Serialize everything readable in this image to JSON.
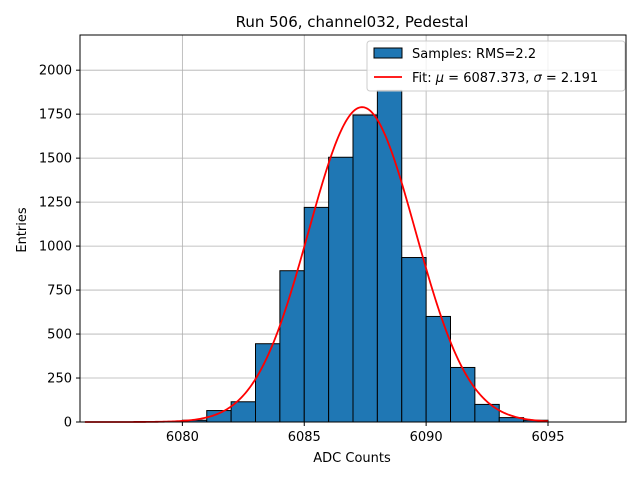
{
  "chart_data": {
    "type": "bar",
    "title": "Run 506, channel032, Pedestal",
    "xlabel": "ADC Counts",
    "ylabel": "Entries",
    "xlim": [
      6075.8,
      6098.2
    ],
    "ylim": [
      0,
      2200
    ],
    "x_ticks": [
      6080,
      6085,
      6090,
      6095
    ],
    "y_ticks": [
      0,
      250,
      500,
      750,
      1000,
      1250,
      1500,
      1750,
      2000
    ],
    "grid": true,
    "legend_position": "top-right",
    "histogram": {
      "name": "Samples: RMS=2.2",
      "bin_edges": [
        6080.0,
        6081.0,
        6082.0,
        6083.0,
        6084.0,
        6085.0,
        6086.0,
        6087.0,
        6088.0,
        6089.0,
        6090.0,
        6091.0,
        6092.0,
        6093.0,
        6094.0,
        6095.0
      ],
      "values": [
        10,
        65,
        115,
        445,
        860,
        1220,
        1505,
        1745,
        1885,
        935,
        600,
        310,
        100,
        25,
        10
      ],
      "color": "#1f77b4",
      "edge_color": "#000000"
    },
    "fit": {
      "name": "Fit: μ = 6087.373, σ = 2.191",
      "legend_prefix": "Fit: ",
      "legend_mu": "μ",
      "legend_mu_value": " = 6087.373, ",
      "legend_sigma": "σ",
      "legend_sigma_value": " = 2.191",
      "mu": 6087.373,
      "sigma": 2.191,
      "amplitude": 1790,
      "x_range": [
        6076.0,
        6095.0
      ],
      "color": "#ff0000"
    },
    "grid_color": "#b0b0b0",
    "axes_color": "#000000"
  }
}
